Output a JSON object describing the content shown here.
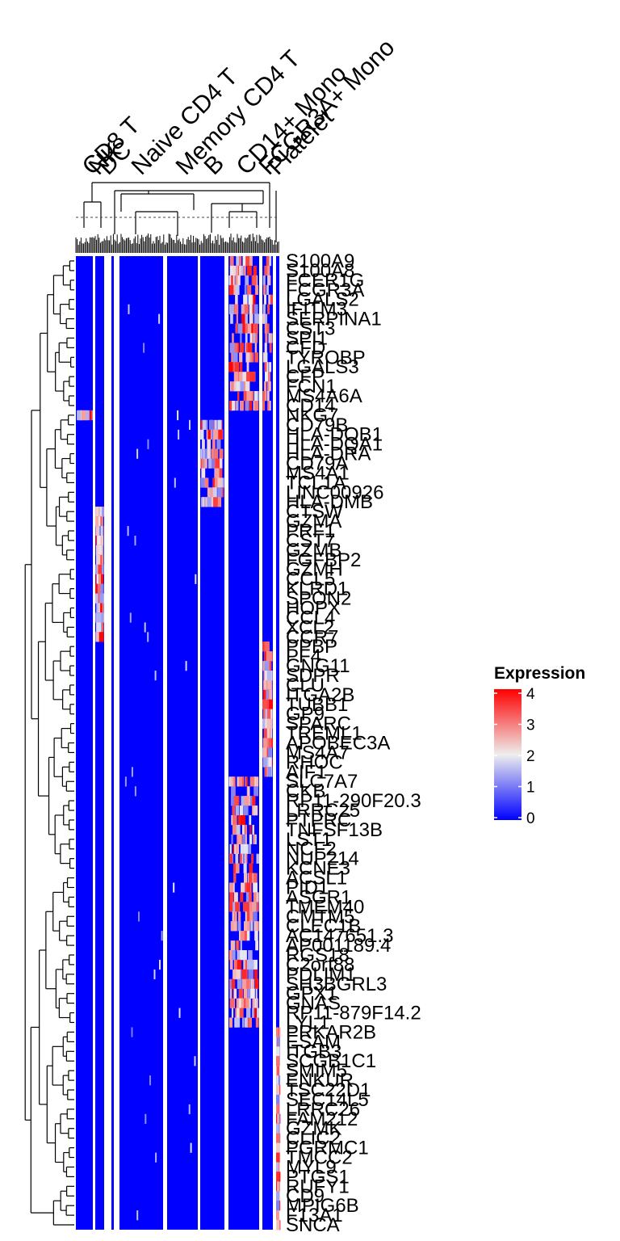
{
  "chart_data": {
    "type": "heatmap",
    "column_groups": [
      "CD8 T",
      "NK",
      "DC",
      "Naive CD4 T",
      "Memory CD4 T",
      "B",
      "CD14+ Mono",
      "FCGR3A+ Mono",
      "Platelet"
    ],
    "rows": [
      "S100A9",
      "S100A8",
      "FCER1G",
      "FCGR3A",
      "LGALS2",
      "IFITM3",
      "SERPINA1",
      "CST3",
      "SPI1",
      "CFD",
      "TYROBP",
      "LGALS3",
      "CFP",
      "FCN1",
      "MS4A6A",
      "CD14",
      "NKG7",
      "CD79B",
      "HLA-DQB1",
      "HLA-DQA1",
      "HLA-DRA",
      "CD79A",
      "MS4A1",
      "TCL1A",
      "LINC00926",
      "HLA-DMB",
      "CTSW",
      "GZMA",
      "PRF1",
      "CST7",
      "GZMB",
      "FGFBP2",
      "GZMH",
      "CCL5",
      "KLRD1",
      "SPON2",
      "HOPX",
      "CCL4",
      "XCL2",
      "CCR7",
      "PPBP",
      "PF4",
      "GNG11",
      "SDPR",
      "CLU",
      "ITGA2B",
      "TUBB1",
      "GP9",
      "SPARC",
      "TREML1",
      "APOBEC3A",
      "MS4A7",
      "RHOC",
      "AIF1",
      "SLC7A7",
      "CKB",
      "RP11-290F20.3",
      "LRRC25",
      "PTPRC",
      "TNFSF13B",
      "LST1",
      "NCF2",
      "NUP214",
      "KCNE3",
      "ACSL1",
      "PID1",
      "ASGR1",
      "TMEM40",
      "CMTM5",
      "CLEC1B",
      "AC147651.3",
      "AP001189.4",
      "RGS18",
      "C2orf88",
      "PDLIM1",
      "SH3BGRL3",
      "GPX1",
      "GNAS",
      "RP11-879F14.2",
      "LYL1",
      "PRKAR2B",
      "ESAM",
      "ITGB3",
      "SCGB1C1",
      "SMIM5",
      "ENKUR",
      "TSC22D1",
      "SEC14L5",
      "LRRC26",
      "FAM212",
      "GZMK",
      "CLIC2",
      "PGRMC1",
      "TMCC2",
      "MYL9",
      "PTGS1",
      "RUFY1",
      "CD9",
      "MPIG6B",
      "F13A1",
      "SNCA"
    ],
    "legend": {
      "title": "Expression",
      "ticks": [
        0,
        1,
        2,
        3,
        4
      ],
      "colors": [
        "#0000ff",
        "#eeeeee",
        "#ff0000"
      ]
    },
    "dendrogram_cut_line": true
  }
}
